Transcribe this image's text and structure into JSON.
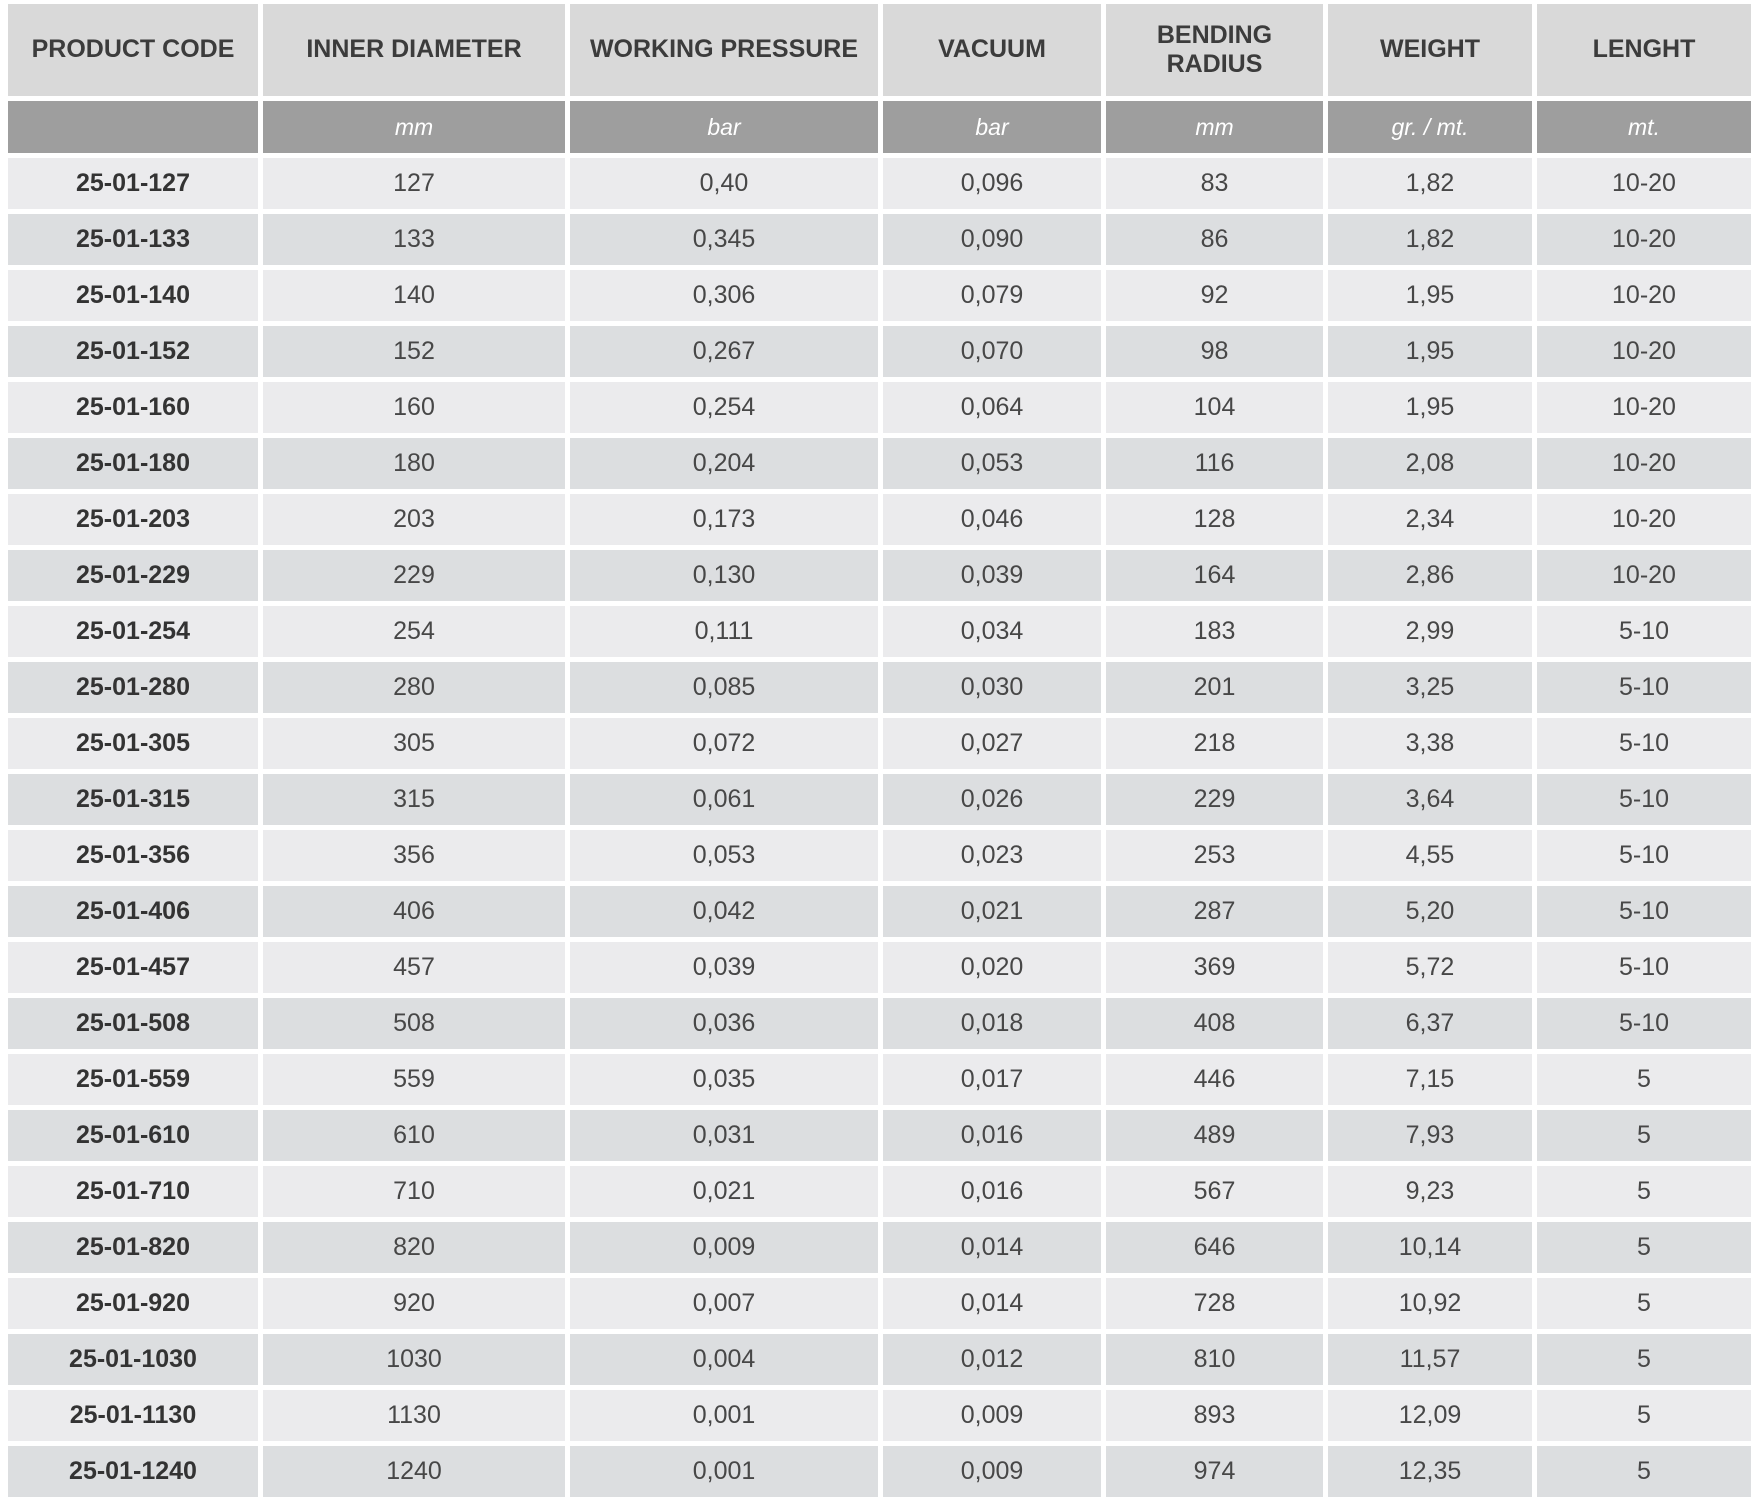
{
  "table": {
    "name": "hose-specification-table",
    "columns": [
      {
        "label": "PRODUCT CODE",
        "unit": ""
      },
      {
        "label": "INNER DIAMETER",
        "unit": "mm"
      },
      {
        "label": "WORKING PRESSURE",
        "unit": "bar"
      },
      {
        "label": "VACUUM",
        "unit": "bar"
      },
      {
        "label": "BENDING RADIUS",
        "unit": "mm"
      },
      {
        "label": "WEIGHT",
        "unit": "gr. / mt."
      },
      {
        "label": "LENGHT",
        "unit": "mt."
      }
    ],
    "rows": [
      [
        "25-01-127",
        "127",
        "0,40",
        "0,096",
        "83",
        "1,82",
        "10-20"
      ],
      [
        "25-01-133",
        "133",
        "0,345",
        "0,090",
        "86",
        "1,82",
        "10-20"
      ],
      [
        "25-01-140",
        "140",
        "0,306",
        "0,079",
        "92",
        "1,95",
        "10-20"
      ],
      [
        "25-01-152",
        "152",
        "0,267",
        "0,070",
        "98",
        "1,95",
        "10-20"
      ],
      [
        "25-01-160",
        "160",
        "0,254",
        "0,064",
        "104",
        "1,95",
        "10-20"
      ],
      [
        "25-01-180",
        "180",
        "0,204",
        "0,053",
        "116",
        "2,08",
        "10-20"
      ],
      [
        "25-01-203",
        "203",
        "0,173",
        "0,046",
        "128",
        "2,34",
        "10-20"
      ],
      [
        "25-01-229",
        "229",
        "0,130",
        "0,039",
        "164",
        "2,86",
        "10-20"
      ],
      [
        "25-01-254",
        "254",
        "0,111",
        "0,034",
        "183",
        "2,99",
        "5-10"
      ],
      [
        "25-01-280",
        "280",
        "0,085",
        "0,030",
        "201",
        "3,25",
        "5-10"
      ],
      [
        "25-01-305",
        "305",
        "0,072",
        "0,027",
        "218",
        "3,38",
        "5-10"
      ],
      [
        "25-01-315",
        "315",
        "0,061",
        "0,026",
        "229",
        "3,64",
        "5-10"
      ],
      [
        "25-01-356",
        "356",
        "0,053",
        "0,023",
        "253",
        "4,55",
        "5-10"
      ],
      [
        "25-01-406",
        "406",
        "0,042",
        "0,021",
        "287",
        "5,20",
        "5-10"
      ],
      [
        "25-01-457",
        "457",
        "0,039",
        "0,020",
        "369",
        "5,72",
        "5-10"
      ],
      [
        "25-01-508",
        "508",
        "0,036",
        "0,018",
        "408",
        "6,37",
        "5-10"
      ],
      [
        "25-01-559",
        "559",
        "0,035",
        "0,017",
        "446",
        "7,15",
        "5"
      ],
      [
        "25-01-610",
        "610",
        "0,031",
        "0,016",
        "489",
        "7,93",
        "5"
      ],
      [
        "25-01-710",
        "710",
        "0,021",
        "0,016",
        "567",
        "9,23",
        "5"
      ],
      [
        "25-01-820",
        "820",
        "0,009",
        "0,014",
        "646",
        "10,14",
        "5"
      ],
      [
        "25-01-920",
        "920",
        "0,007",
        "0,014",
        "728",
        "10,92",
        "5"
      ],
      [
        "25-01-1030",
        "1030",
        "0,004",
        "0,012",
        "810",
        "11,57",
        "5"
      ],
      [
        "25-01-1130",
        "1130",
        "0,001",
        "0,009",
        "893",
        "12,09",
        "5"
      ],
      [
        "25-01-1240",
        "1240",
        "0,001",
        "0,009",
        "974",
        "12,35",
        "5"
      ]
    ]
  },
  "colors": {
    "header_bg": "#d9d9d9",
    "header_text": "#3c3c3c",
    "units_bg": "#9e9e9e",
    "units_text": "#ffffff",
    "row_odd": "#ebebed",
    "row_even": "#dcdee0",
    "cell_text": "#474747",
    "code_text": "#333333",
    "gap": "#ffffff"
  }
}
